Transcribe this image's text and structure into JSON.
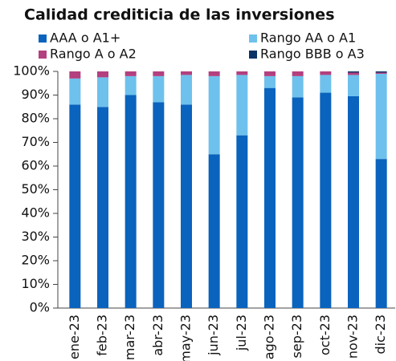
{
  "chart_data": {
    "type": "stacked_bar",
    "title": "Calidad crediticia de las inversiones",
    "categories": [
      "ene-23",
      "feb-23",
      "mar-23",
      "abr-23",
      "may-23",
      "jun-23",
      "jul-23",
      "ago-23",
      "sep-23",
      "oct-23",
      "nov-23",
      "dic-23"
    ],
    "series": [
      {
        "name": "AAA o A1+",
        "color": "#0a63bd",
        "values": [
          86,
          85,
          90,
          87,
          86,
          65,
          73,
          93,
          89,
          91,
          89.5,
          63
        ]
      },
      {
        "name": "Rango AA o A1",
        "color": "#6ec1ec",
        "values": [
          11,
          12.5,
          8,
          11,
          12.5,
          33,
          25.5,
          5,
          9,
          7.5,
          9,
          36
        ]
      },
      {
        "name": "Rango A o A2",
        "color": "#b3407f",
        "values": [
          3,
          2.5,
          2,
          2,
          1.5,
          2,
          1.5,
          2,
          2,
          1.5,
          1,
          0.5
        ]
      },
      {
        "name": "Rango BBB o A3",
        "color": "#0b3566",
        "values": [
          0,
          0,
          0,
          0,
          0,
          0,
          0,
          0,
          0,
          0,
          0.5,
          0.5
        ]
      }
    ],
    "ylim": [
      0,
      100
    ],
    "yticks": [
      {
        "value": 0,
        "label": "0%"
      },
      {
        "value": 10,
        "label": "10%"
      },
      {
        "value": 20,
        "label": "20%"
      },
      {
        "value": 30,
        "label": "30%"
      },
      {
        "value": 40,
        "label": "40%"
      },
      {
        "value": 50,
        "label": "50%"
      },
      {
        "value": 60,
        "label": "60%"
      },
      {
        "value": 70,
        "label": "70%"
      },
      {
        "value": 80,
        "label": "80%"
      },
      {
        "value": 90,
        "label": "90%"
      },
      {
        "value": 100,
        "label": "100%"
      }
    ]
  }
}
